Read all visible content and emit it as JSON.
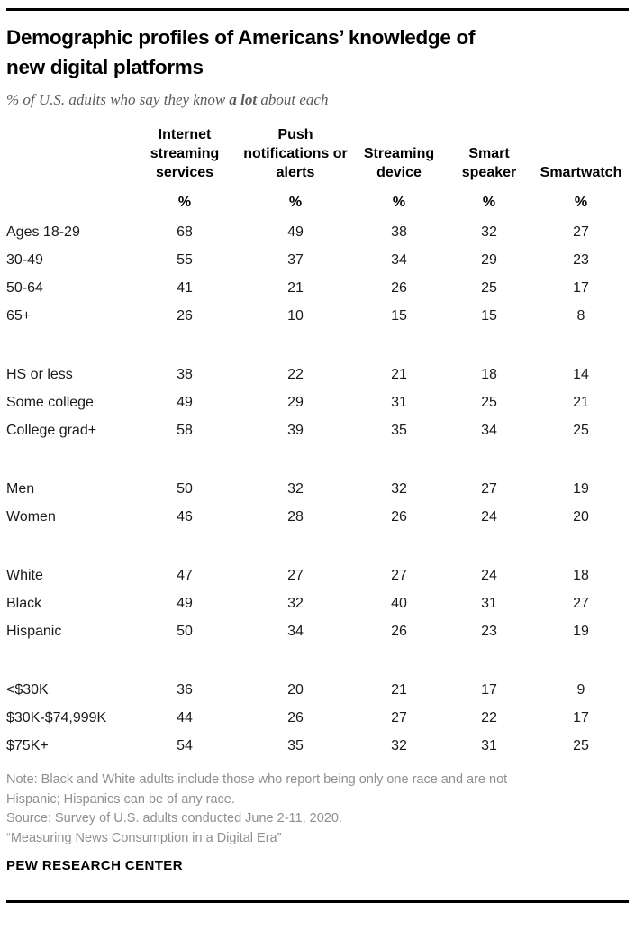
{
  "header": {
    "title_line1": "Demographic profiles of Americans’ knowledge of",
    "title_line2": "new digital platforms",
    "subtitle_prefix": "% of U.S. adults who say they know ",
    "subtitle_bold": "a lot",
    "subtitle_suffix": " about each"
  },
  "chart_data": {
    "type": "table",
    "title": "Demographic profiles of Americans’ knowledge of new digital platforms",
    "subtitle": "% of U.S. adults who say they know a lot about each",
    "unit": "%",
    "columns": [
      "Internet streaming services",
      "Push notifications or alerts",
      "Streaming device",
      "Smart speaker",
      "Smartwatch"
    ],
    "groups": [
      {
        "rows": [
          {
            "label": "Ages 18-29",
            "values": [
              68,
              49,
              38,
              32,
              27
            ]
          },
          {
            "label": "30-49",
            "values": [
              55,
              37,
              34,
              29,
              23
            ]
          },
          {
            "label": "50-64",
            "values": [
              41,
              21,
              26,
              25,
              17
            ]
          },
          {
            "label": "65+",
            "values": [
              26,
              10,
              15,
              15,
              8
            ]
          }
        ]
      },
      {
        "rows": [
          {
            "label": "HS or less",
            "values": [
              38,
              22,
              21,
              18,
              14
            ]
          },
          {
            "label": "Some college",
            "values": [
              49,
              29,
              31,
              25,
              21
            ]
          },
          {
            "label": "College grad+",
            "values": [
              58,
              39,
              35,
              34,
              25
            ]
          }
        ]
      },
      {
        "rows": [
          {
            "label": "Men",
            "values": [
              50,
              32,
              32,
              27,
              19
            ]
          },
          {
            "label": "Women",
            "values": [
              46,
              28,
              26,
              24,
              20
            ]
          }
        ]
      },
      {
        "rows": [
          {
            "label": "White",
            "values": [
              47,
              27,
              27,
              24,
              18
            ]
          },
          {
            "label": "Black",
            "values": [
              49,
              32,
              40,
              31,
              27
            ]
          },
          {
            "label": "Hispanic",
            "values": [
              50,
              34,
              26,
              23,
              19
            ]
          }
        ]
      },
      {
        "rows": [
          {
            "label": "<$30K",
            "values": [
              36,
              20,
              21,
              17,
              9
            ]
          },
          {
            "label": "$30K-$74,999K",
            "values": [
              44,
              26,
              27,
              22,
              17
            ]
          },
          {
            "label": "$75K+",
            "values": [
              54,
              35,
              32,
              31,
              25
            ]
          }
        ]
      }
    ]
  },
  "footer": {
    "note_line1": "Note: Black and White adults include those who report being only one race and are not",
    "note_line2": "Hispanic; Hispanics can be of any race.",
    "source_line": "Source: Survey of U.S. adults conducted June 2-11, 2020.",
    "report_line": "“Measuring News Consumption in a Digital Era”",
    "brand": "PEW RESEARCH CENTER"
  },
  "colors": {
    "title": "#000000",
    "subtitle": "#595959",
    "table_text": "#1a1a1a",
    "note": "#8f8f8f",
    "rule": "#000000",
    "background": "#ffffff"
  }
}
